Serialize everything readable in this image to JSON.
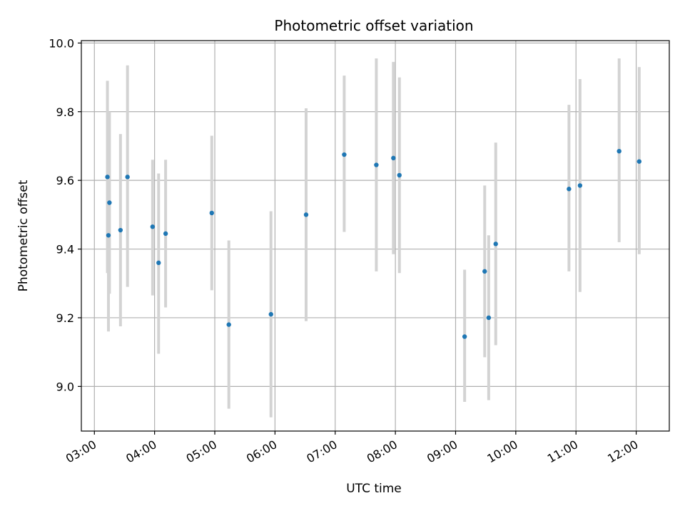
{
  "chart_data": {
    "type": "scatter",
    "title": "Photometric offset variation",
    "xlabel": "UTC time",
    "ylabel": "Photometric offset",
    "xlim": [
      "02:47",
      "12:33"
    ],
    "ylim": [
      8.87,
      10.007
    ],
    "grid": true,
    "x_ticks": [
      "03:00",
      "04:00",
      "05:00",
      "06:00",
      "07:00",
      "08:00",
      "09:00",
      "10:00",
      "11:00",
      "12:00"
    ],
    "y_ticks": [
      9.0,
      9.2,
      9.4,
      9.6,
      9.8,
      10.0
    ],
    "marker_color": "#1f77b4",
    "errorbar_color": "#d3d3d3",
    "points": [
      {
        "x": "03:13",
        "y": 9.61,
        "ylo": 9.33,
        "yhi": 9.89
      },
      {
        "x": "03:14",
        "y": 9.44,
        "ylo": 9.16,
        "yhi": 9.71
      },
      {
        "x": "03:15",
        "y": 9.535,
        "ylo": 9.27,
        "yhi": 9.8
      },
      {
        "x": "03:26",
        "y": 9.455,
        "ylo": 9.175,
        "yhi": 9.735
      },
      {
        "x": "03:33",
        "y": 9.61,
        "ylo": 9.29,
        "yhi": 9.935
      },
      {
        "x": "03:58",
        "y": 9.465,
        "ylo": 9.265,
        "yhi": 9.66
      },
      {
        "x": "04:04",
        "y": 9.36,
        "ylo": 9.095,
        "yhi": 9.62
      },
      {
        "x": "04:11",
        "y": 9.445,
        "ylo": 9.23,
        "yhi": 9.66
      },
      {
        "x": "04:57",
        "y": 9.505,
        "ylo": 9.28,
        "yhi": 9.73
      },
      {
        "x": "05:14",
        "y": 9.18,
        "ylo": 8.935,
        "yhi": 9.425
      },
      {
        "x": "05:56",
        "y": 9.21,
        "ylo": 8.91,
        "yhi": 9.51
      },
      {
        "x": "06:31",
        "y": 9.5,
        "ylo": 9.19,
        "yhi": 9.81
      },
      {
        "x": "07:09",
        "y": 9.675,
        "ylo": 9.45,
        "yhi": 9.905
      },
      {
        "x": "07:41",
        "y": 9.645,
        "ylo": 9.335,
        "yhi": 9.955
      },
      {
        "x": "07:58",
        "y": 9.665,
        "ylo": 9.385,
        "yhi": 9.945
      },
      {
        "x": "08:04",
        "y": 9.615,
        "ylo": 9.33,
        "yhi": 9.9
      },
      {
        "x": "09:09",
        "y": 9.145,
        "ylo": 8.955,
        "yhi": 9.34
      },
      {
        "x": "09:29",
        "y": 9.335,
        "ylo": 9.085,
        "yhi": 9.585
      },
      {
        "x": "09:33",
        "y": 9.2,
        "ylo": 8.96,
        "yhi": 9.44
      },
      {
        "x": "09:40",
        "y": 9.415,
        "ylo": 9.12,
        "yhi": 9.71
      },
      {
        "x": "10:53",
        "y": 9.575,
        "ylo": 9.335,
        "yhi": 9.82
      },
      {
        "x": "11:04",
        "y": 9.585,
        "ylo": 9.275,
        "yhi": 9.895
      },
      {
        "x": "11:43",
        "y": 9.685,
        "ylo": 9.42,
        "yhi": 9.955
      },
      {
        "x": "12:03",
        "y": 9.655,
        "ylo": 9.385,
        "yhi": 9.93
      }
    ]
  }
}
